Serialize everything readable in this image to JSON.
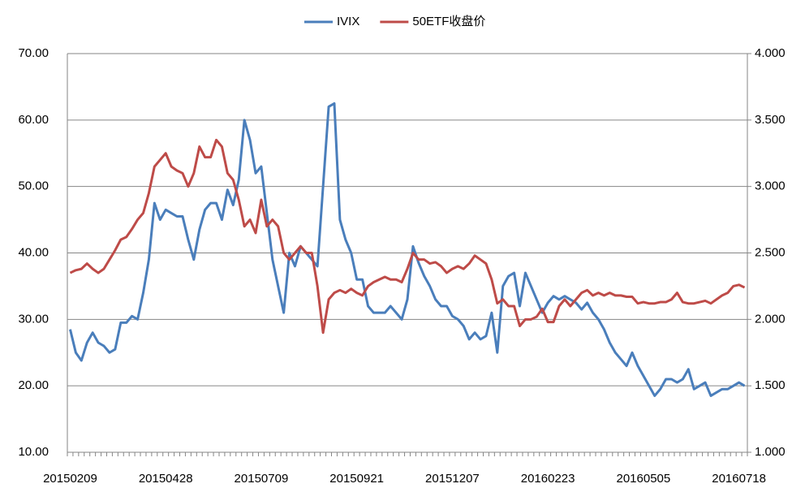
{
  "chart_data": {
    "type": "line",
    "categories": [
      "20150209",
      null,
      null,
      null,
      null,
      null,
      null,
      null,
      null,
      null,
      null,
      null,
      null,
      null,
      null,
      null,
      null,
      "20150428",
      null,
      null,
      null,
      null,
      null,
      null,
      null,
      null,
      null,
      null,
      null,
      null,
      null,
      null,
      null,
      null,
      "20150709",
      null,
      null,
      null,
      null,
      null,
      null,
      null,
      null,
      null,
      null,
      null,
      null,
      null,
      null,
      null,
      null,
      "20150921",
      null,
      null,
      null,
      null,
      null,
      null,
      null,
      null,
      null,
      null,
      null,
      null,
      null,
      null,
      null,
      null,
      "20151207",
      null,
      null,
      null,
      null,
      null,
      null,
      null,
      null,
      null,
      null,
      null,
      null,
      null,
      null,
      null,
      null,
      "20160223",
      null,
      null,
      null,
      null,
      null,
      null,
      null,
      null,
      null,
      null,
      null,
      null,
      null,
      null,
      null,
      null,
      "20160505",
      null,
      null,
      null,
      null,
      null,
      null,
      null,
      null,
      null,
      null,
      null,
      null,
      null,
      null,
      null,
      null,
      "20160718",
      null
    ],
    "series": [
      {
        "name": "IVIX",
        "color": "#4a7ebb",
        "values": [
          28.5,
          25,
          23.8,
          26.5,
          28,
          26.5,
          26,
          25,
          25.5,
          29.5,
          29.5,
          30.5,
          30,
          34,
          39,
          47.5,
          45,
          46.5,
          46,
          45.5,
          45.5,
          42,
          39,
          43.5,
          46.5,
          47.5,
          47.5,
          45,
          49.5,
          47.2,
          51,
          60,
          57,
          52,
          53,
          46,
          39,
          35,
          31,
          40,
          38,
          41,
          40,
          39,
          38,
          50,
          62,
          62.5,
          45,
          42,
          40,
          36,
          36,
          32,
          31,
          31,
          31,
          32,
          31,
          30,
          33,
          41,
          38.5,
          36.5,
          35,
          33,
          32,
          32,
          30.5,
          30,
          29,
          27,
          28,
          27,
          27.5,
          31,
          25,
          35,
          36.5,
          37,
          32,
          37,
          35,
          33,
          31,
          32.5,
          33.5,
          33,
          33.5,
          33,
          32.5,
          31.5,
          32.5,
          31,
          30,
          28.5,
          26.5,
          25,
          24,
          23,
          25,
          23,
          21.5,
          20,
          18.5,
          19.5,
          21,
          21,
          20.5,
          21,
          22.5,
          19.5,
          20,
          20.5,
          18.5,
          19,
          19.5,
          19.5,
          20,
          20.5,
          20
        ]
      },
      {
        "name": "50ETF收盘价",
        "color": "#be4b48",
        "axis": "y2",
        "values": [
          2.35,
          2.37,
          2.38,
          2.42,
          2.38,
          2.35,
          2.38,
          2.45,
          2.52,
          2.6,
          2.62,
          2.68,
          2.75,
          2.8,
          2.95,
          3.15,
          3.2,
          3.25,
          3.15,
          3.12,
          3.1,
          3.0,
          3.1,
          3.3,
          3.22,
          3.22,
          3.35,
          3.3,
          3.1,
          3.05,
          2.9,
          2.7,
          2.75,
          2.65,
          2.9,
          2.7,
          2.75,
          2.7,
          2.5,
          2.45,
          2.5,
          2.55,
          2.5,
          2.5,
          2.25,
          1.9,
          2.15,
          2.2,
          2.22,
          2.2,
          2.23,
          2.2,
          2.18,
          2.25,
          2.28,
          2.3,
          2.32,
          2.3,
          2.3,
          2.28,
          2.38,
          2.5,
          2.45,
          2.45,
          2.42,
          2.43,
          2.4,
          2.35,
          2.38,
          2.4,
          2.38,
          2.42,
          2.48,
          2.45,
          2.42,
          2.3,
          2.12,
          2.15,
          2.1,
          2.1,
          1.95,
          2.0,
          2.0,
          2.02,
          2.08,
          1.98,
          1.98,
          2.1,
          2.15,
          2.1,
          2.15,
          2.2,
          2.22,
          2.18,
          2.2,
          2.18,
          2.2,
          2.18,
          2.18,
          2.17,
          2.17,
          2.12,
          2.13,
          2.12,
          2.12,
          2.13,
          2.13,
          2.15,
          2.2,
          2.13,
          2.12,
          2.12,
          2.13,
          2.14,
          2.12,
          2.15,
          2.18,
          2.2,
          2.25,
          2.26,
          2.24
        ]
      }
    ],
    "ylim": [
      10,
      70
    ],
    "yticks": [
      {
        "value": 10,
        "label": "10.00"
      },
      {
        "value": 20,
        "label": "20.00"
      },
      {
        "value": 30,
        "label": "30.00"
      },
      {
        "value": 40,
        "label": "40.00"
      },
      {
        "value": 50,
        "label": "50.00"
      },
      {
        "value": 60,
        "label": "60.00"
      },
      {
        "value": 70,
        "label": "70.00"
      }
    ],
    "y2lim": [
      1,
      4
    ],
    "y2ticks": [
      {
        "value": 1,
        "label": "1.000"
      },
      {
        "value": 1.5,
        "label": "1.500"
      },
      {
        "value": 2,
        "label": "2.000"
      },
      {
        "value": 2.5,
        "label": "2.500"
      },
      {
        "value": 3,
        "label": "3.000"
      },
      {
        "value": 3.5,
        "label": "3.500"
      },
      {
        "value": 4,
        "label": "4.000"
      }
    ],
    "grid": true,
    "legend": "top"
  }
}
